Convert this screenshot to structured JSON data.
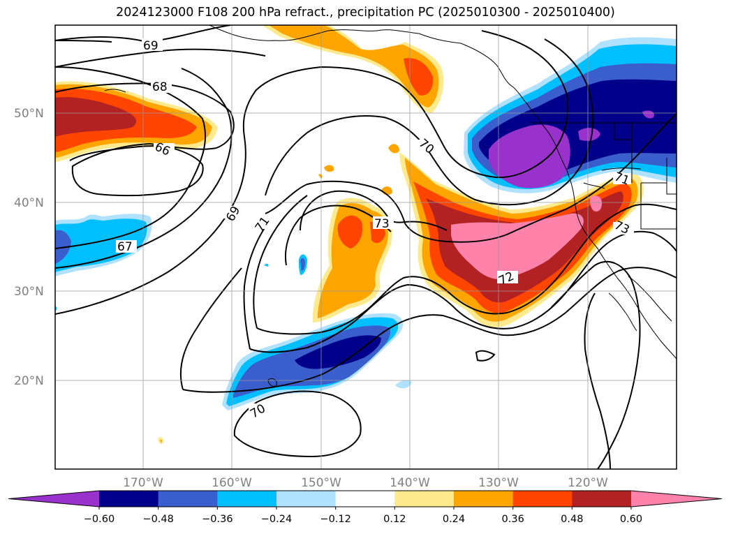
{
  "title": "2024123000 F108 200 hPa refract., precipitation PC (2025010300 - 2025010400)",
  "latitude_labels": [
    "50°N",
    "40°N",
    "30°N",
    "20°N"
  ],
  "longitude_labels": [
    "170°W",
    "160°W",
    "150°W",
    "140°W",
    "130°W",
    "120°W"
  ],
  "contour_labels": [
    "69",
    "68",
    "66",
    "70",
    "69",
    "71",
    "73",
    "67",
    "72",
    "73",
    "70",
    "71"
  ],
  "colorbar": {
    "colors": [
      "#9932cc",
      "#00008b",
      "#3a5fcd",
      "#00bfff",
      "#b0e2ff",
      "#ffffff",
      "#fdea8e",
      "#ffa500",
      "#ff4500",
      "#b22222",
      "#ff82ab"
    ],
    "labels": [
      "−0.60",
      "−0.48",
      "−0.36",
      "−0.24",
      "−0.12",
      "0.12",
      "0.24",
      "0.36",
      "0.48",
      "0.60"
    ]
  }
}
